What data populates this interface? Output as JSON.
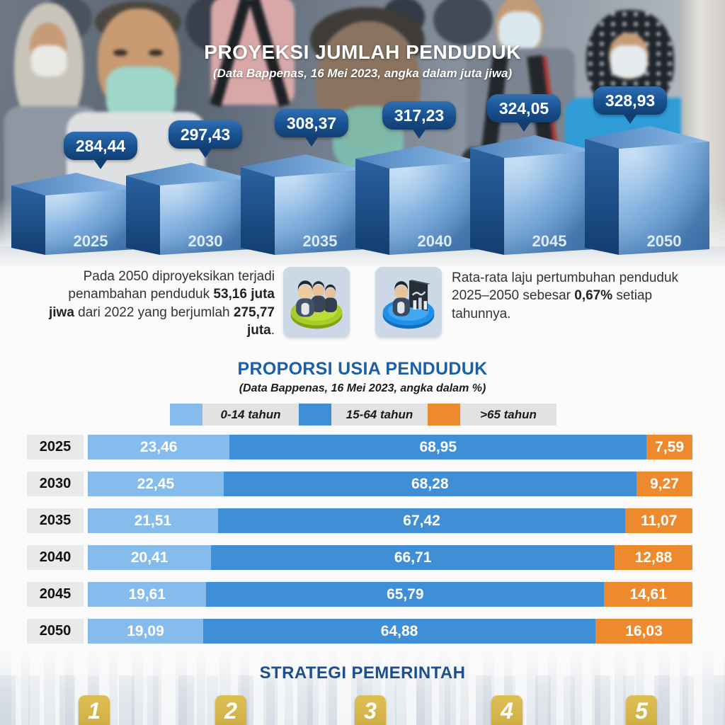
{
  "header": {
    "title": "PROYEKSI JUMLAH PENDUDUK",
    "subtitle": "(Data Bappenas, 16 Mei 2023, angka dalam juta jiwa)"
  },
  "chart_data": [
    {
      "type": "bar",
      "variant": "3d-cube-steps",
      "title": "PROYEKSI JUMLAH PENDUDUK",
      "subtitle": "(Data Bappenas, 16 Mei 2023, angka dalam juta jiwa)",
      "unit": "juta jiwa",
      "categories": [
        "2025",
        "2030",
        "2035",
        "2040",
        "2045",
        "2050"
      ],
      "values": [
        284.44,
        297.43,
        308.37,
        317.23,
        324.05,
        328.93
      ],
      "value_labels": [
        "284,44",
        "297,43",
        "308,37",
        "317,23",
        "324,05",
        "328,93"
      ]
    },
    {
      "type": "bar",
      "variant": "horizontal-stacked",
      "title": "PROPORSI USIA PENDUDUK",
      "subtitle": "(Data Bappenas, 16 Mei 2023, angka dalam %)",
      "unit": "%",
      "xlim": [
        0,
        100
      ],
      "legend_position": "top",
      "categories": [
        "2025",
        "2030",
        "2035",
        "2040",
        "2045",
        "2050"
      ],
      "series": [
        {
          "name": "0-14 tahun",
          "color": "#85bcec",
          "values": [
            23.46,
            22.45,
            21.51,
            20.41,
            19.61,
            19.09
          ],
          "labels": [
            "23,46",
            "22,45",
            "21,51",
            "20,41",
            "19,61",
            "19,09"
          ]
        },
        {
          "name": "15-64 tahun",
          "color": "#3f8ed6",
          "values": [
            68.95,
            68.28,
            67.42,
            66.71,
            65.79,
            64.88
          ],
          "labels": [
            "68,95",
            "68,28",
            "67,42",
            "66,71",
            "65,79",
            "64,88"
          ]
        },
        {
          "name": ">65 tahun",
          "color": "#ee8a2e",
          "values": [
            7.59,
            9.27,
            11.07,
            12.88,
            14.61,
            16.03
          ],
          "labels": [
            "7,59",
            "9,27",
            "11,07",
            "12,88",
            "14,61",
            "16,03"
          ]
        }
      ]
    }
  ],
  "notes": {
    "left_segments": [
      {
        "text": "Pada 2050 diproyeksikan terjadi penambahan penduduk ",
        "bold": false
      },
      {
        "text": "53,16 juta jiwa",
        "bold": true
      },
      {
        "text": " dari 2022 yang berjumlah ",
        "bold": false
      },
      {
        "text": "275,77 juta",
        "bold": true
      },
      {
        "text": ".",
        "bold": false
      }
    ],
    "right_segments": [
      {
        "text": "Rata-rata laju pertumbuhan penduduk 2025–2050 sebesar ",
        "bold": false
      },
      {
        "text": "0,67%",
        "bold": true
      },
      {
        "text": " setiap tahunnya.",
        "bold": false
      }
    ]
  },
  "icons": [
    {
      "name": "population-group-icon"
    },
    {
      "name": "population-growth-icon"
    }
  ],
  "section2": {
    "title": "PROPORSI USIA PENDUDUK",
    "subtitle": "(Data Bappenas, 16 Mei 2023, angka dalam %)"
  },
  "strategy": {
    "title": "STRATEGI PEMERINTAH",
    "badges": [
      "1",
      "2",
      "3",
      "4",
      "5"
    ]
  },
  "colors": {
    "bubble_blue": "#17508f",
    "cube_front": "#6fa3d8",
    "cube_side": "#123e70",
    "age_0_14": "#85bcec",
    "age_15_64": "#3f8ed6",
    "age_65_plus": "#ee8a2e",
    "section_title_blue": "#1d5fa4",
    "strategy_badge_gold": "#d1b047"
  }
}
